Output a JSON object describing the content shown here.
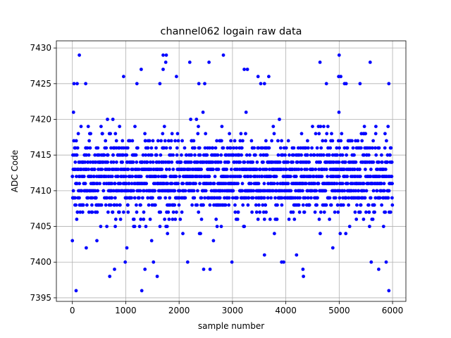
{
  "chart_data": {
    "type": "scatter",
    "title": "channel062 logain raw data",
    "xlabel": "sample number",
    "ylabel": "ADC Code",
    "xlim": [
      -300,
      6250
    ],
    "ylim": [
      7394.5,
      7431
    ],
    "xticks": [
      0,
      1000,
      2000,
      3000,
      4000,
      5000,
      6000
    ],
    "yticks": [
      7395,
      7400,
      7405,
      7410,
      7415,
      7420,
      7425,
      7430
    ],
    "grid": true,
    "marker_color": "#0000ff",
    "n_samples": 6000,
    "mean": 7412,
    "series": [
      {
        "name": "",
        "points": [
          [
            130,
            7429
          ],
          [
            1700,
            7429
          ],
          [
            1760,
            7429
          ],
          [
            2830,
            7429
          ],
          [
            5000,
            7429
          ],
          [
            1750,
            7428
          ],
          [
            2200,
            7428
          ],
          [
            2560,
            7428
          ],
          [
            4640,
            7428
          ],
          [
            5580,
            7428
          ],
          [
            1290,
            7427
          ],
          [
            1700,
            7427
          ],
          [
            3220,
            7427
          ],
          [
            3280,
            7427
          ],
          [
            960,
            7426
          ],
          [
            1950,
            7426
          ],
          [
            3480,
            7426
          ],
          [
            3680,
            7426
          ],
          [
            4990,
            7426
          ],
          [
            5030,
            7426
          ],
          [
            30,
            7425
          ],
          [
            90,
            7425
          ],
          [
            250,
            7425
          ],
          [
            1210,
            7425
          ],
          [
            1640,
            7425
          ],
          [
            2370,
            7425
          ],
          [
            2480,
            7425
          ],
          [
            3530,
            7425
          ],
          [
            3600,
            7425
          ],
          [
            4760,
            7425
          ],
          [
            5100,
            7425
          ],
          [
            5130,
            7425
          ],
          [
            5390,
            7425
          ],
          [
            5930,
            7425
          ],
          [
            70,
            7396
          ],
          [
            1300,
            7396
          ],
          [
            5930,
            7396
          ],
          [
            1590,
            7398
          ],
          [
            700,
            7398
          ],
          [
            4330,
            7398
          ],
          [
            790,
            7399
          ],
          [
            1360,
            7399
          ],
          [
            2460,
            7399
          ],
          [
            2580,
            7399
          ],
          [
            4320,
            7399
          ],
          [
            5740,
            7399
          ],
          [
            990,
            7400
          ],
          [
            1520,
            7400
          ],
          [
            2160,
            7400
          ],
          [
            2990,
            7400
          ],
          [
            3920,
            7400
          ],
          [
            3960,
            7400
          ],
          [
            5600,
            7400
          ],
          [
            5880,
            7400
          ],
          [
            0,
            7403
          ],
          [
            260,
            7402
          ],
          [
            1020,
            7402
          ],
          [
            3600,
            7401
          ],
          [
            4200,
            7401
          ],
          [
            4880,
            7402
          ]
        ]
      }
    ]
  }
}
